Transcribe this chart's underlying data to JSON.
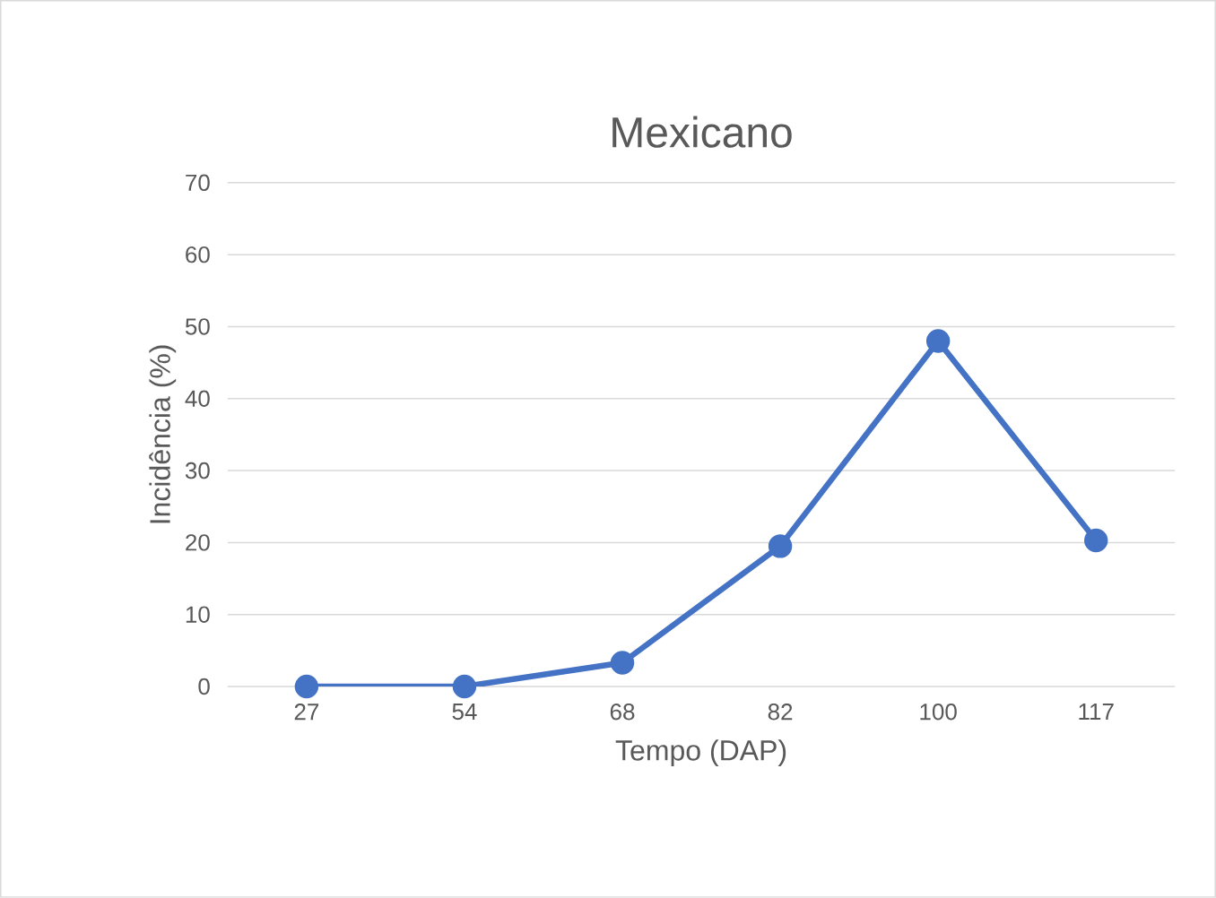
{
  "chart_data": {
    "type": "line",
    "title": "Mexicano",
    "xlabel": "Tempo (DAP)",
    "ylabel": "Incidência (%)",
    "categories": [
      "27",
      "54",
      "68",
      "82",
      "100",
      "117"
    ],
    "series": [
      {
        "color": "#4472c4",
        "values": [
          0,
          0,
          3.3,
          19.5,
          48,
          20.3
        ]
      }
    ],
    "ylim": [
      0,
      70
    ],
    "yticks": [
      0,
      10,
      20,
      30,
      40,
      50,
      60,
      70
    ],
    "grid": "y",
    "marker": "circle",
    "line_style": "solid"
  }
}
